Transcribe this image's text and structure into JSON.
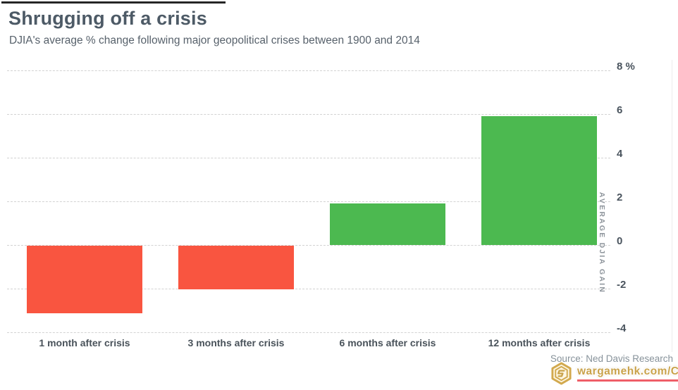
{
  "header": {
    "title": "Shrugging off a crisis",
    "subtitle": "DJIA's average % change following major geopolitical crises between 1900 and 2014"
  },
  "chart_data": {
    "type": "bar",
    "title": "Shrugging off a crisis",
    "subtitle": "DJIA's average % change following major geopolitical crises between 1900 and 2014",
    "categories": [
      "1 month after crisis",
      "3 months after crisis",
      "6 months after crisis",
      "12 months after crisis"
    ],
    "values": [
      -3.1,
      -2.0,
      1.9,
      5.9
    ],
    "xlabel": "",
    "ylabel": "AVERAGE DJIA GAIN",
    "ylim": [
      -4,
      8
    ],
    "yticks": [
      8,
      6,
      4,
      2,
      0,
      -2,
      -4
    ],
    "ytick_labels": [
      "8 %",
      "6",
      "4",
      "2",
      "0",
      "-2",
      "-4"
    ],
    "grid": "horizontal-dashed",
    "legend": "none",
    "colors": {
      "positive_bar": "#4cb950",
      "negative_bar": "#f95540",
      "gridline": "#d2d2d2",
      "title_text": "#4d5a66",
      "tick_text": "#49525a",
      "axis_title_text": "#8d949b"
    }
  },
  "footer": {
    "source": "Source: Ned Davis Research",
    "watermark": {
      "text": "wargamehk.com/CGF",
      "logo": "hexagon-g-icon",
      "text_color": "#c9a24a",
      "underline_color": "#ef5e68"
    }
  }
}
